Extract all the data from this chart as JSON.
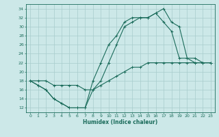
{
  "xlabel": "Humidex (Indice chaleur)",
  "bg_color": "#cce8e8",
  "grid_color": "#a8cccc",
  "line_color": "#1a6b5a",
  "xlim": [
    -0.5,
    23.5
  ],
  "ylim": [
    11,
    35
  ],
  "xticks": [
    0,
    1,
    2,
    3,
    4,
    5,
    6,
    7,
    8,
    9,
    10,
    11,
    12,
    13,
    14,
    15,
    16,
    17,
    18,
    19,
    20,
    21,
    22,
    23
  ],
  "yticks": [
    12,
    14,
    16,
    18,
    20,
    22,
    24,
    26,
    28,
    30,
    32,
    34
  ],
  "series": [
    [
      18,
      17,
      16,
      14,
      13,
      12,
      12,
      12,
      18,
      22,
      26,
      28,
      31,
      32,
      32,
      32,
      33,
      34,
      31,
      30,
      23,
      23,
      22,
      22
    ],
    [
      18,
      17,
      16,
      14,
      13,
      12,
      12,
      12,
      16,
      18,
      22,
      26,
      30,
      31,
      32,
      32,
      33,
      31,
      29,
      23,
      23,
      22,
      22,
      22
    ],
    [
      18,
      18,
      18,
      17,
      17,
      17,
      17,
      16,
      16,
      17,
      18,
      19,
      20,
      21,
      21,
      22,
      22,
      22,
      22,
      22,
      22,
      22,
      22,
      22
    ]
  ]
}
